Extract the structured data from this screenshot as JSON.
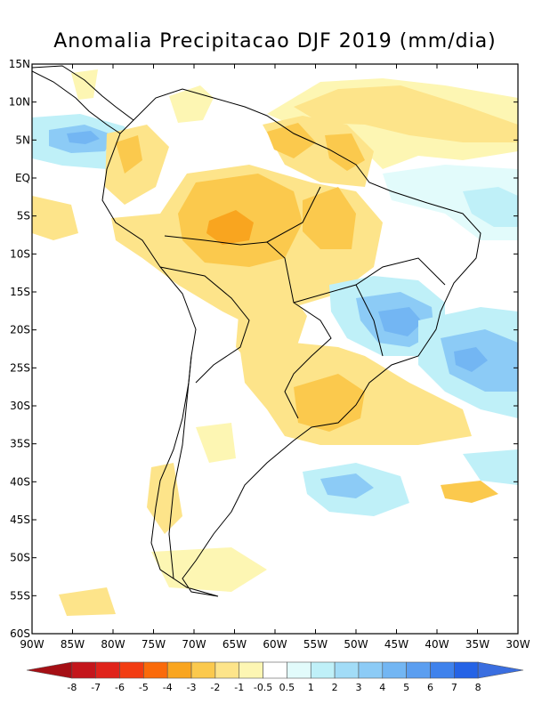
{
  "title": "Anomalia Precipitacao DJF 2019 (mm/dia)",
  "map": {
    "lat_range": [
      -60,
      15
    ],
    "lon_range": [
      -90,
      -30
    ],
    "lat_ticks": [
      {
        "value": 15,
        "label": "15N"
      },
      {
        "value": 10,
        "label": "10N"
      },
      {
        "value": 5,
        "label": "5N"
      },
      {
        "value": 0,
        "label": "EQ"
      },
      {
        "value": -5,
        "label": "5S"
      },
      {
        "value": -10,
        "label": "10S"
      },
      {
        "value": -15,
        "label": "15S"
      },
      {
        "value": -20,
        "label": "20S"
      },
      {
        "value": -25,
        "label": "25S"
      },
      {
        "value": -30,
        "label": "30S"
      },
      {
        "value": -35,
        "label": "35S"
      },
      {
        "value": -40,
        "label": "40S"
      },
      {
        "value": -45,
        "label": "45S"
      },
      {
        "value": -50,
        "label": "50S"
      },
      {
        "value": -55,
        "label": "55S"
      },
      {
        "value": -60,
        "label": "60S"
      }
    ],
    "lon_ticks": [
      {
        "value": -90,
        "label": "90W"
      },
      {
        "value": -85,
        "label": "85W"
      },
      {
        "value": -80,
        "label": "80W"
      },
      {
        "value": -75,
        "label": "75W"
      },
      {
        "value": -70,
        "label": "70W"
      },
      {
        "value": -65,
        "label": "65W"
      },
      {
        "value": -60,
        "label": "60W"
      },
      {
        "value": -55,
        "label": "55W"
      },
      {
        "value": -50,
        "label": "50W"
      },
      {
        "value": -45,
        "label": "45W"
      },
      {
        "value": -40,
        "label": "40W"
      },
      {
        "value": -35,
        "label": "35W"
      },
      {
        "value": -30,
        "label": "30W"
      }
    ]
  },
  "colorbar": {
    "labels": [
      "-8",
      "-7",
      "-6",
      "-5",
      "-4",
      "-3",
      "-2",
      "-1",
      "-0.5",
      "0.5",
      "1",
      "2",
      "3",
      "4",
      "5",
      "6",
      "7",
      "8"
    ],
    "colors": [
      "#a50f15",
      "#c4161c",
      "#e0231b",
      "#f23c12",
      "#fa6a0a",
      "#f9a51f",
      "#fbc94d",
      "#fde48a",
      "#fdf6b3",
      "#ffffff",
      "#e2fbfb",
      "#bff0f8",
      "#a2dcf7",
      "#8ccbf6",
      "#73b6f3",
      "#5b9ef0",
      "#3f82ec",
      "#2563e6",
      "#3a6ee0"
    ]
  },
  "anomalies": [
    {
      "name": "amazon-dry",
      "level": -3,
      "color": "#fbc94d",
      "lon": -63,
      "lat": -5
    },
    {
      "name": "amazon-core-dry",
      "level": -4,
      "color": "#f9a51f",
      "lon": -65.5,
      "lat": -6
    },
    {
      "name": "guiana-dry",
      "level": -3,
      "color": "#fbc94d",
      "lon": -51,
      "lat": 3
    },
    {
      "name": "colombia-dry",
      "level": -3,
      "color": "#fbc94d",
      "lon": -76.5,
      "lat": 3
    },
    {
      "name": "south-brazil-dry",
      "level": -2,
      "color": "#fde48a",
      "lon": -53,
      "lat": -30
    },
    {
      "name": "southeast-brazil-wet",
      "level": 4,
      "color": "#8ccbf6",
      "lon": -44,
      "lat": -20
    },
    {
      "name": "south-atlantic-wet",
      "level": 5,
      "color": "#73b6f3",
      "lon": -37,
      "lat": -24
    },
    {
      "name": "pacific-wet",
      "level": 4,
      "color": "#8ccbf6",
      "lon": -84.5,
      "lat": 5
    }
  ]
}
